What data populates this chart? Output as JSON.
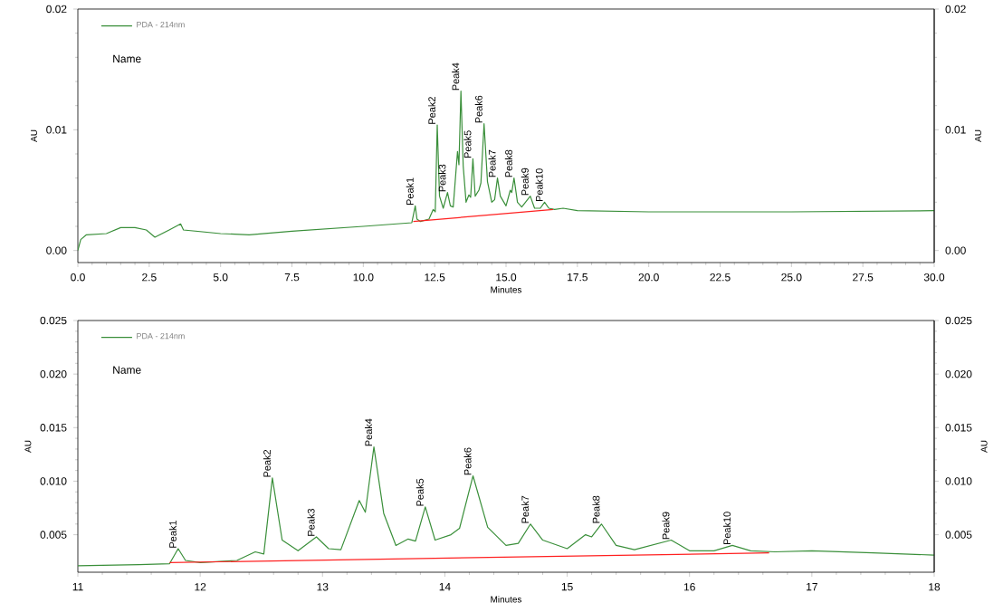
{
  "chart_data": [
    {
      "type": "line",
      "xlabel": "Minutes",
      "ylabel": "AU",
      "y2label": "AU",
      "xlim": [
        0,
        30
      ],
      "xticks": [
        {
          "value": 0,
          "label": "0.0"
        },
        {
          "value": 2.5,
          "label": "2.5"
        },
        {
          "value": 5,
          "label": "5.0"
        },
        {
          "value": 7.5,
          "label": "7.5"
        },
        {
          "value": 10,
          "label": "10.0"
        },
        {
          "value": 12.5,
          "label": "12.5"
        },
        {
          "value": 15,
          "label": "15.0"
        },
        {
          "value": 17.5,
          "label": "17.5"
        },
        {
          "value": 20,
          "label": "20.0"
        },
        {
          "value": 22.5,
          "label": "22.5"
        },
        {
          "value": 25,
          "label": "25.0"
        },
        {
          "value": 27.5,
          "label": "27.5"
        },
        {
          "value": 30,
          "label": "30.0"
        }
      ],
      "ylim": [
        -0.001,
        0.02
      ],
      "yticks": [
        {
          "value": 0,
          "label": "0.00"
        },
        {
          "value": 0.01,
          "label": "0.01"
        },
        {
          "value": 0.02,
          "label": "0.02"
        }
      ],
      "y2lim": [
        -0.001,
        0.02
      ],
      "y2ticks": [
        {
          "value": 0,
          "label": "0.00"
        },
        {
          "value": 0.01,
          "label": "0.01"
        },
        {
          "value": 0.02,
          "label": "0.02"
        }
      ],
      "legend": "top left",
      "series": [
        {
          "name": "PDA - 214nm",
          "color": "#3a8f3a",
          "x": [
            0,
            0.1,
            0.3,
            1.0,
            1.5,
            2.0,
            2.4,
            2.7,
            3.2,
            3.6,
            3.7,
            5.0,
            6.0,
            7.5,
            10.0,
            11.7,
            11.82,
            11.88,
            12.0,
            12.3,
            12.45,
            12.52,
            12.59,
            12.67,
            12.8,
            12.95,
            13.05,
            13.15,
            13.3,
            13.35,
            13.42,
            13.5,
            13.6,
            13.7,
            13.76,
            13.84,
            13.92,
            14.05,
            14.12,
            14.23,
            14.35,
            14.5,
            14.6,
            14.7,
            14.8,
            15.0,
            15.15,
            15.2,
            15.28,
            15.4,
            15.55,
            15.85,
            16.0,
            16.2,
            16.35,
            16.5,
            16.7,
            17.0,
            17.5,
            20.0,
            25.0,
            30.0
          ],
          "values": [
            0.0,
            0.0009,
            0.0013,
            0.0014,
            0.0019,
            0.0019,
            0.0017,
            0.0011,
            0.0017,
            0.0022,
            0.0017,
            0.0014,
            0.0013,
            0.0016,
            0.002,
            0.0023,
            0.0037,
            0.0026,
            0.0024,
            0.0026,
            0.0034,
            0.0032,
            0.0104,
            0.0045,
            0.0035,
            0.0048,
            0.0037,
            0.0036,
            0.0082,
            0.0071,
            0.0132,
            0.007,
            0.004,
            0.0046,
            0.0044,
            0.0076,
            0.0045,
            0.005,
            0.0056,
            0.0105,
            0.0057,
            0.004,
            0.0042,
            0.006,
            0.0045,
            0.0037,
            0.005,
            0.0048,
            0.006,
            0.004,
            0.0036,
            0.0045,
            0.0035,
            0.0035,
            0.004,
            0.0035,
            0.0034,
            0.0035,
            0.0033,
            0.0032,
            0.0032,
            0.0033
          ]
        },
        {
          "color": "#ff2020",
          "x": [
            11.75,
            16.65
          ],
          "values": [
            0.0024,
            0.0034
          ]
        }
      ],
      "annotations": [
        "Name",
        {
          "text": "Peak1",
          "x": 11.82,
          "y": 0.0037
        },
        {
          "text": "Peak2",
          "x": 12.59,
          "y": 0.0104
        },
        {
          "text": "Peak3",
          "x": 12.95,
          "y": 0.0048
        },
        {
          "text": "Peak4",
          "x": 13.42,
          "y": 0.0132
        },
        {
          "text": "Peak5",
          "x": 13.84,
          "y": 0.0076
        },
        {
          "text": "Peak6",
          "x": 14.23,
          "y": 0.0105
        },
        {
          "text": "Peak7",
          "x": 14.7,
          "y": 0.006
        },
        {
          "text": "Peak8",
          "x": 15.28,
          "y": 0.006
        },
        {
          "text": "Peak9",
          "x": 15.85,
          "y": 0.0045
        },
        {
          "text": "Peak10",
          "x": 16.35,
          "y": 0.004
        }
      ]
    },
    {
      "type": "line",
      "xlabel": "Minutes",
      "ylabel": "AU",
      "y2label": "AU",
      "xlim": [
        11,
        18
      ],
      "xticks": [
        11,
        12,
        13,
        14,
        15,
        16,
        17,
        18
      ],
      "ylim": [
        0.0015,
        0.025
      ],
      "yticks": [
        {
          "value": 0.005,
          "label": "0.005"
        },
        {
          "value": 0.01,
          "label": "0.010"
        },
        {
          "value": 0.015,
          "label": "0.015"
        },
        {
          "value": 0.02,
          "label": "0.020"
        },
        {
          "value": 0.025,
          "label": "0.025"
        }
      ],
      "y2lim": [
        0.0015,
        0.025
      ],
      "y2ticks": [
        {
          "value": 0.005,
          "label": "0.005"
        },
        {
          "value": 0.01,
          "label": "0.010"
        },
        {
          "value": 0.015,
          "label": "0.015"
        },
        {
          "value": 0.02,
          "label": "0.020"
        },
        {
          "value": 0.025,
          "label": "0.025"
        }
      ],
      "legend": "top left",
      "series": [
        {
          "name": "PDA - 214nm",
          "color": "#3a8f3a",
          "x": [
            11.0,
            11.5,
            11.75,
            11.82,
            11.88,
            12.0,
            12.3,
            12.45,
            12.52,
            12.59,
            12.67,
            12.8,
            12.95,
            13.05,
            13.15,
            13.3,
            13.35,
            13.42,
            13.5,
            13.6,
            13.7,
            13.76,
            13.84,
            13.92,
            14.05,
            14.12,
            14.23,
            14.35,
            14.5,
            14.6,
            14.7,
            14.8,
            15.0,
            15.15,
            15.2,
            15.28,
            15.4,
            15.55,
            15.85,
            16.0,
            16.2,
            16.35,
            16.5,
            16.7,
            17.0,
            17.5,
            18.0
          ],
          "values": [
            0.0021,
            0.0022,
            0.0023,
            0.0037,
            0.0026,
            0.0024,
            0.0026,
            0.0034,
            0.0032,
            0.0103,
            0.0045,
            0.0035,
            0.0048,
            0.0037,
            0.0036,
            0.0082,
            0.0071,
            0.0132,
            0.007,
            0.004,
            0.0046,
            0.0044,
            0.0076,
            0.0045,
            0.005,
            0.0056,
            0.0105,
            0.0057,
            0.004,
            0.0042,
            0.006,
            0.0045,
            0.0037,
            0.005,
            0.0048,
            0.006,
            0.004,
            0.0036,
            0.0045,
            0.0035,
            0.0035,
            0.004,
            0.0035,
            0.0034,
            0.0035,
            0.0033,
            0.0031
          ]
        },
        {
          "color": "#ff2020",
          "x": [
            11.75,
            16.65
          ],
          "values": [
            0.0024,
            0.0033
          ]
        }
      ],
      "annotations": [
        "Name",
        {
          "text": "Peak1",
          "x": 11.82,
          "y": 0.0037
        },
        {
          "text": "Peak2",
          "x": 12.59,
          "y": 0.0103
        },
        {
          "text": "Peak3",
          "x": 12.95,
          "y": 0.0048
        },
        {
          "text": "Peak4",
          "x": 13.42,
          "y": 0.0132
        },
        {
          "text": "Peak5",
          "x": 13.84,
          "y": 0.0076
        },
        {
          "text": "Peak6",
          "x": 14.23,
          "y": 0.0105
        },
        {
          "text": "Peak7",
          "x": 14.7,
          "y": 0.006
        },
        {
          "text": "Peak8",
          "x": 15.28,
          "y": 0.006
        },
        {
          "text": "Peak9",
          "x": 15.85,
          "y": 0.0045
        },
        {
          "text": "Peak10",
          "x": 16.35,
          "y": 0.004
        }
      ]
    }
  ]
}
